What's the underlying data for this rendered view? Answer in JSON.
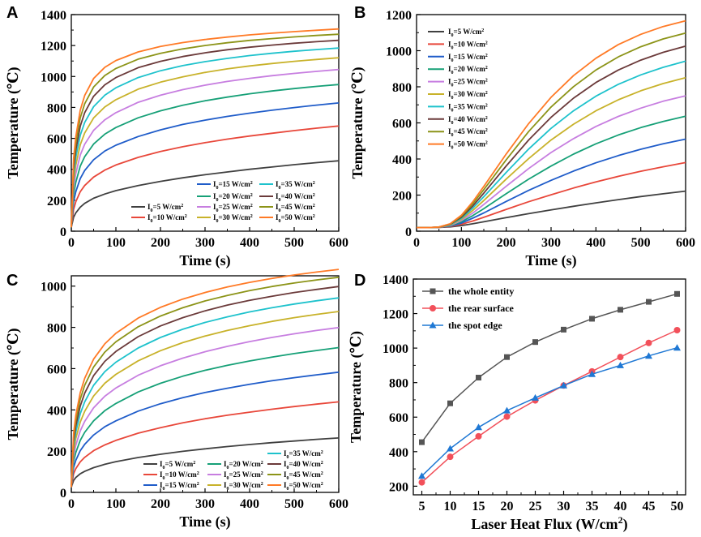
{
  "colors": [
    "#404040",
    "#e8473a",
    "#1f5cc9",
    "#16a077",
    "#c77ee0",
    "#c8b22a",
    "#1ec2cc",
    "#6b3a3a",
    "#8c9418",
    "#ff7a26"
  ],
  "series_names": [
    "I₀=5 W/cm²",
    "I₀=10 W/cm²",
    "I₀=15 W/cm²",
    "I₀=20 W/cm²",
    "I₀=25 W/cm²",
    "I₀=30 W/cm²",
    "I₀=35 W/cm²",
    "I₀=40 W/cm²",
    "I₀=45 W/cm²",
    "I₀=50 W/cm²"
  ],
  "chart_data": [
    {
      "panel": "A",
      "type": "line",
      "xlabel": "Time (s)",
      "ylabel": "Temperature (℃)",
      "xlim": [
        0,
        600
      ],
      "ylim": [
        0,
        1400
      ],
      "xticks": [
        0,
        100,
        200,
        300,
        400,
        500,
        600
      ],
      "yticks": [
        0,
        200,
        400,
        600,
        800,
        1000,
        1200,
        1400
      ],
      "x": [
        0,
        5,
        10,
        20,
        30,
        50,
        75,
        100,
        150,
        200,
        250,
        300,
        350,
        400,
        450,
        500,
        550,
        600
      ],
      "series": [
        {
          "name": "I₀=5 W/cm²",
          "values": [
            25,
            90,
            118,
            155,
            180,
            213,
            240,
            262,
            295,
            322,
            345,
            365,
            383,
            400,
            415,
            430,
            443,
            455
          ]
        },
        {
          "name": "I₀=10 W/cm²",
          "values": [
            25,
            140,
            190,
            255,
            295,
            350,
            395,
            428,
            477,
            515,
            546,
            572,
            595,
            615,
            633,
            650,
            666,
            680
          ]
        },
        {
          "name": "I₀=15 W/cm²",
          "values": [
            25,
            190,
            255,
            340,
            392,
            462,
            518,
            556,
            612,
            655,
            690,
            718,
            742,
            763,
            782,
            799,
            815,
            829
          ]
        },
        {
          "name": "I₀=20 W/cm²",
          "values": [
            25,
            235,
            315,
            420,
            482,
            563,
            627,
            670,
            733,
            778,
            814,
            843,
            867,
            888,
            906,
            922,
            936,
            948
          ]
        },
        {
          "name": "I₀=25 W/cm²",
          "values": [
            25,
            280,
            372,
            492,
            562,
            652,
            720,
            766,
            833,
            879,
            915,
            944,
            968,
            988,
            1005,
            1020,
            1033,
            1045
          ]
        },
        {
          "name": "I₀=30 W/cm²",
          "values": [
            25,
            322,
            426,
            558,
            635,
            732,
            803,
            850,
            918,
            963,
            998,
            1026,
            1049,
            1068,
            1084,
            1098,
            1110,
            1121
          ]
        },
        {
          "name": "I₀=35 W/cm²",
          "values": [
            25,
            362,
            476,
            620,
            703,
            805,
            879,
            927,
            993,
            1037,
            1070,
            1096,
            1117,
            1135,
            1150,
            1163,
            1174,
            1184
          ]
        },
        {
          "name": "I₀=40 W/cm²",
          "values": [
            25,
            400,
            523,
            678,
            766,
            872,
            946,
            993,
            1057,
            1098,
            1129,
            1153,
            1173,
            1189,
            1203,
            1215,
            1225,
            1234
          ]
        },
        {
          "name": "I₀=45 W/cm²",
          "values": [
            25,
            436,
            567,
            732,
            824,
            932,
            1006,
            1052,
            1112,
            1150,
            1178,
            1200,
            1218,
            1233,
            1245,
            1256,
            1265,
            1273
          ]
        },
        {
          "name": "I₀=50 W/cm²",
          "values": [
            25,
            470,
            609,
            782,
            877,
            987,
            1059,
            1103,
            1159,
            1194,
            1219,
            1239,
            1255,
            1269,
            1280,
            1290,
            1299,
            1307
          ]
        }
      ]
    },
    {
      "panel": "B",
      "type": "line",
      "xlabel": "Time (s)",
      "ylabel": "Temperature (℃)",
      "xlim": [
        0,
        600
      ],
      "ylim": [
        0,
        1200
      ],
      "xticks": [
        0,
        100,
        200,
        300,
        400,
        500,
        600
      ],
      "yticks": [
        0,
        200,
        400,
        600,
        800,
        1000,
        1200
      ],
      "x": [
        0,
        25,
        50,
        75,
        100,
        125,
        150,
        200,
        250,
        300,
        350,
        400,
        450,
        500,
        550,
        600
      ],
      "series": [
        {
          "name": "I₀=5 W/cm²",
          "values": [
            20,
            20,
            21,
            24,
            31,
            41,
            52,
            75,
            97,
            118,
            138,
            157,
            175,
            192,
            207,
            222
          ]
        },
        {
          "name": "I₀=10 W/cm²",
          "values": [
            20,
            20,
            21,
            26,
            38,
            56,
            77,
            121,
            163,
            202,
            239,
            273,
            304,
            332,
            357,
            380
          ]
        },
        {
          "name": "I₀=15 W/cm²",
          "values": [
            20,
            20,
            22,
            28,
            45,
            72,
            101,
            165,
            226,
            282,
            333,
            379,
            419,
            454,
            484,
            510
          ]
        },
        {
          "name": "I₀=20 W/cm²",
          "values": [
            20,
            20,
            22,
            30,
            52,
            86,
            125,
            208,
            288,
            361,
            427,
            484,
            533,
            574,
            608,
            637
          ]
        },
        {
          "name": "I₀=25 W/cm²",
          "values": [
            20,
            20,
            22,
            32,
            59,
            100,
            148,
            249,
            347,
            436,
            513,
            580,
            636,
            682,
            720,
            750
          ]
        },
        {
          "name": "I₀=30 W/cm²",
          "values": [
            20,
            20,
            22,
            34,
            65,
            114,
            170,
            289,
            402,
            505,
            593,
            667,
            728,
            778,
            818,
            851
          ]
        },
        {
          "name": "I₀=35 W/cm²",
          "values": [
            20,
            20,
            23,
            36,
            71,
            127,
            191,
            326,
            455,
            570,
            667,
            748,
            814,
            866,
            908,
            942
          ]
        },
        {
          "name": "I₀=40 W/cm²",
          "values": [
            20,
            20,
            23,
            38,
            77,
            139,
            211,
            362,
            505,
            631,
            737,
            824,
            893,
            948,
            991,
            1025
          ]
        },
        {
          "name": "I₀=45 W/cm²",
          "values": [
            20,
            20,
            23,
            40,
            83,
            151,
            230,
            396,
            552,
            688,
            801,
            893,
            966,
            1022,
            1065,
            1098
          ]
        },
        {
          "name": "I₀=50 W/cm²",
          "values": [
            20,
            20,
            23,
            41,
            88,
            162,
            248,
            428,
            596,
            742,
            862,
            958,
            1034,
            1091,
            1134,
            1166
          ]
        }
      ]
    },
    {
      "panel": "C",
      "type": "line",
      "xlabel": "Time (s)",
      "ylabel": "Temperature (℃)",
      "xlim": [
        0,
        600
      ],
      "ylim": [
        0,
        1050
      ],
      "xticks": [
        0,
        100,
        200,
        300,
        400,
        500,
        600
      ],
      "yticks": [
        0,
        200,
        400,
        600,
        800,
        1000
      ],
      "x": [
        0,
        5,
        10,
        20,
        30,
        50,
        75,
        100,
        150,
        200,
        250,
        300,
        350,
        400,
        450,
        500,
        550,
        600
      ],
      "series": [
        {
          "name": "I₀=5 W/cm²",
          "values": [
            25,
            58,
            72,
            90,
            102,
            120,
            136,
            149,
            169,
            185,
            199,
            211,
            222,
            232,
            241,
            249,
            257,
            264
          ]
        },
        {
          "name": "I₀=10 W/cm²",
          "values": [
            25,
            90,
            115,
            148,
            170,
            202,
            230,
            252,
            287,
            314,
            337,
            357,
            374,
            389,
            403,
            416,
            428,
            439
          ]
        },
        {
          "name": "I₀=15 W/cm²",
          "values": [
            25,
            120,
            155,
            202,
            233,
            278,
            318,
            347,
            394,
            430,
            459,
            484,
            505,
            524,
            541,
            556,
            570,
            583
          ]
        },
        {
          "name": "I₀=20 W/cm²",
          "values": [
            25,
            148,
            193,
            252,
            291,
            347,
            396,
            431,
            487,
            529,
            563,
            592,
            616,
            637,
            656,
            673,
            688,
            702
          ]
        },
        {
          "name": "I₀=25 W/cm²",
          "values": [
            25,
            175,
            228,
            298,
            344,
            410,
            466,
            506,
            568,
            614,
            651,
            682,
            708,
            731,
            751,
            769,
            785,
            799
          ]
        },
        {
          "name": "I₀=30 W/cm²",
          "values": [
            25,
            200,
            261,
            341,
            393,
            467,
            529,
            572,
            638,
            687,
            726,
            758,
            785,
            808,
            829,
            847,
            863,
            877
          ]
        },
        {
          "name": "I₀=35 W/cm²",
          "values": [
            25,
            224,
            292,
            381,
            439,
            519,
            585,
            631,
            700,
            751,
            791,
            824,
            851,
            875,
            895,
            913,
            929,
            943
          ]
        },
        {
          "name": "I₀=40 W/cm²",
          "values": [
            25,
            246,
            321,
            418,
            481,
            566,
            635,
            683,
            755,
            807,
            847,
            880,
            908,
            931,
            951,
            969,
            984,
            998
          ]
        },
        {
          "name": "I₀=45 W/cm²",
          "values": [
            25,
            267,
            348,
            452,
            519,
            608,
            680,
            730,
            803,
            855,
            895,
            928,
            955,
            978,
            998,
            1015,
            1030,
            1043
          ]
        },
        {
          "name": "I₀=50 W/cm²",
          "values": [
            25,
            286,
            373,
            483,
            553,
            646,
            720,
            771,
            845,
            897,
            937,
            969,
            996,
            1018,
            1037,
            1054,
            1068,
            1081
          ]
        }
      ]
    },
    {
      "panel": "D",
      "type": "line",
      "xlabel": "Laser Heat Flux (W/cm²)",
      "ylabel": "Temperature (℃)",
      "xlim": [
        3.5,
        51.5
      ],
      "ylim": [
        150,
        1400
      ],
      "xticks": [
        5,
        10,
        15,
        20,
        25,
        30,
        35,
        40,
        45,
        50
      ],
      "yticks": [
        200,
        400,
        600,
        800,
        1000,
        1200,
        1400
      ],
      "x": [
        5,
        10,
        15,
        20,
        25,
        30,
        35,
        40,
        45,
        50
      ],
      "series": [
        {
          "name": "the whole entity",
          "color": "#555555",
          "marker": "square",
          "values": [
            455,
            680,
            829,
            948,
            1035,
            1107,
            1170,
            1222,
            1268,
            1314
          ]
        },
        {
          "name": "the rear surface",
          "color": "#f2505a",
          "marker": "circle",
          "values": [
            222,
            370,
            489,
            603,
            697,
            783,
            865,
            948,
            1030,
            1104
          ]
        },
        {
          "name": "the spot edge",
          "color": "#1f78d4",
          "marker": "triangle",
          "values": [
            259,
            418,
            541,
            638,
            712,
            783,
            849,
            900,
            955,
            1002
          ]
        }
      ]
    }
  ]
}
